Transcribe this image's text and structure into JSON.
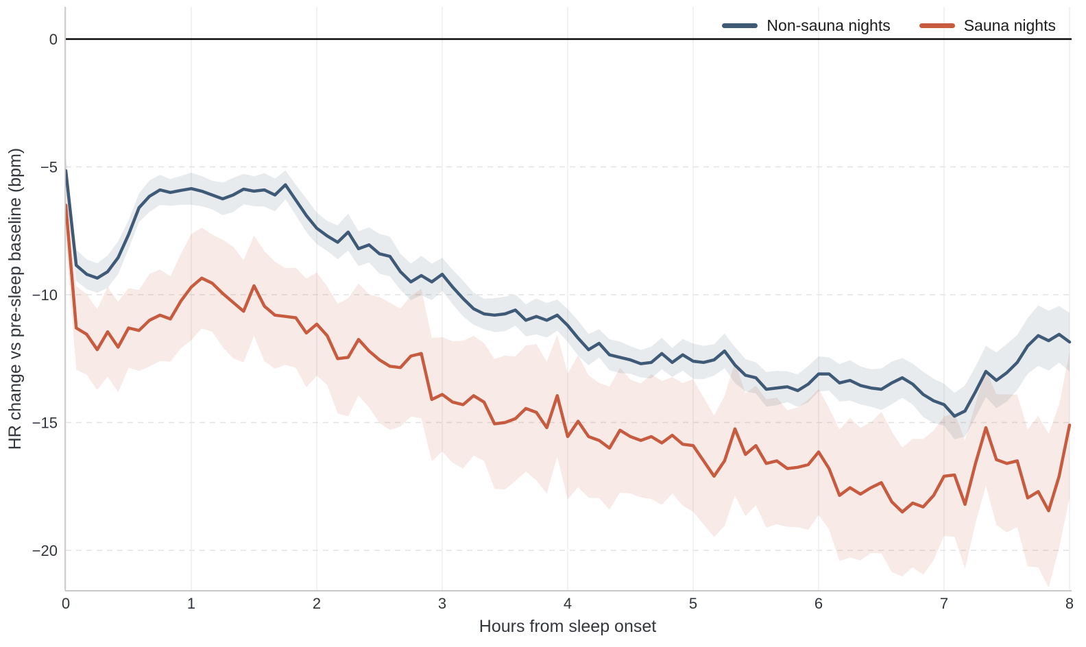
{
  "figure": {
    "background": "#ffffff"
  },
  "legend": {
    "entries": [
      {
        "label": "Non-sauna nights",
        "color": "#3E5A77"
      },
      {
        "label": "Sauna nights",
        "color": "#C65B40"
      }
    ]
  },
  "axes": {
    "tick_label_color": "#2f343c",
    "axis_label_color": "#33373d",
    "spine_color": "#c9c9c9",
    "grid_dashed_color": "#e3e3e3",
    "grid_vertical_color": "#efeded",
    "zero_line_color": "#0a0a0a",
    "x_tick_labels": [
      "0",
      "1",
      "2",
      "3",
      "4",
      "5",
      "6",
      "7",
      "8"
    ],
    "y_tick_labels": [
      "0",
      "−5",
      "−10",
      "−15",
      "−20"
    ]
  },
  "chart_data": {
    "type": "line",
    "title": "",
    "xlabel": "Hours from sleep onset",
    "ylabel": "HR change vs pre-sleep baseline (bpm)",
    "xlim": [
      0,
      8
    ],
    "ylim": [
      -21.6,
      1.3
    ],
    "x_ticks": [
      0,
      1,
      2,
      3,
      4,
      5,
      6,
      7,
      8
    ],
    "y_ticks": [
      0,
      -5,
      -10,
      -15,
      -20
    ],
    "grid": {
      "horizontal": "dashed",
      "vertical": "solid-faint",
      "zero_line": "solid-black"
    },
    "legend_position": "upper right",
    "x_hours": [
      0,
      0.0833,
      0.1667,
      0.25,
      0.3333,
      0.4167,
      0.5,
      0.5833,
      0.6667,
      0.75,
      0.8333,
      0.9167,
      1,
      1.0833,
      1.1667,
      1.25,
      1.3333,
      1.4167,
      1.5,
      1.5833,
      1.6667,
      1.75,
      1.8333,
      1.9167,
      2,
      2.0833,
      2.1667,
      2.25,
      2.3333,
      2.4167,
      2.5,
      2.5833,
      2.6667,
      2.75,
      2.8333,
      2.9167,
      3,
      3.0833,
      3.1667,
      3.25,
      3.3333,
      3.4167,
      3.5,
      3.5833,
      3.6667,
      3.75,
      3.8333,
      3.9167,
      4,
      4.0833,
      4.1667,
      4.25,
      4.3333,
      4.4167,
      4.5,
      4.5833,
      4.6667,
      4.75,
      4.8333,
      4.9167,
      5,
      5.0833,
      5.1667,
      5.25,
      5.3333,
      5.4167,
      5.5,
      5.5833,
      5.6667,
      5.75,
      5.8333,
      5.9167,
      6,
      6.0833,
      6.1667,
      6.25,
      6.3333,
      6.4167,
      6.5,
      6.5833,
      6.6667,
      6.75,
      6.8333,
      6.9167,
      7,
      7.0833,
      7.1667,
      7.25,
      7.3333,
      7.4167,
      7.5,
      7.5833,
      7.6667,
      7.75,
      7.8333,
      7.9167,
      8
    ],
    "series": [
      {
        "name": "Non-sauna nights",
        "color": "#3E5A77",
        "band_alpha": 0.12,
        "band_jitter": 0.08,
        "values": [
          -5.15,
          -8.85,
          -9.2,
          -9.35,
          -9.1,
          -8.55,
          -7.65,
          -6.6,
          -6.15,
          -5.9,
          -6.0,
          -5.92,
          -5.85,
          -5.95,
          -6.1,
          -6.25,
          -6.1,
          -5.87,
          -5.95,
          -5.9,
          -6.1,
          -5.7,
          -6.3,
          -6.9,
          -7.4,
          -7.7,
          -7.95,
          -7.55,
          -8.2,
          -8.05,
          -8.4,
          -8.5,
          -9.1,
          -9.5,
          -9.25,
          -9.5,
          -9.2,
          -9.7,
          -10.15,
          -10.55,
          -10.75,
          -10.8,
          -10.75,
          -10.6,
          -11.0,
          -10.85,
          -11.0,
          -10.8,
          -11.2,
          -11.7,
          -12.15,
          -11.9,
          -12.35,
          -12.45,
          -12.55,
          -12.7,
          -12.65,
          -12.3,
          -12.65,
          -12.35,
          -12.6,
          -12.65,
          -12.55,
          -12.2,
          -12.75,
          -13.15,
          -13.25,
          -13.7,
          -13.65,
          -13.6,
          -13.75,
          -13.5,
          -13.1,
          -13.1,
          -13.45,
          -13.35,
          -13.55,
          -13.65,
          -13.7,
          -13.45,
          -13.25,
          -13.5,
          -13.9,
          -14.15,
          -14.3,
          -14.75,
          -14.55,
          -13.8,
          -13.0,
          -13.35,
          -13.05,
          -12.65,
          -12.0,
          -11.6,
          -11.8,
          -11.55,
          -11.85
        ],
        "ci_halfwidth_profile": [
          [
            0,
            0.5
          ],
          [
            0.25,
            0.6
          ],
          [
            0.5,
            0.62
          ],
          [
            1,
            0.58
          ],
          [
            1.5,
            0.6
          ],
          [
            2,
            0.65
          ],
          [
            2.5,
            0.72
          ],
          [
            3,
            0.7
          ],
          [
            3.5,
            0.65
          ],
          [
            4,
            0.62
          ],
          [
            4.5,
            0.6
          ],
          [
            5,
            0.62
          ],
          [
            5.5,
            0.65
          ],
          [
            6,
            0.7
          ],
          [
            6.5,
            0.75
          ],
          [
            7,
            0.9
          ],
          [
            7.3,
            1.05
          ],
          [
            7.7,
            1.1
          ],
          [
            8,
            1.15
          ]
        ]
      },
      {
        "name": "Sauna nights",
        "color": "#C65B40",
        "band_alpha": 0.13,
        "band_jitter": 0.22,
        "values": [
          -6.5,
          -11.3,
          -11.55,
          -12.15,
          -11.45,
          -12.05,
          -11.3,
          -11.4,
          -11.0,
          -10.8,
          -10.95,
          -10.25,
          -9.7,
          -9.35,
          -9.55,
          -9.95,
          -10.3,
          -10.65,
          -9.65,
          -10.45,
          -10.8,
          -10.85,
          -10.9,
          -11.5,
          -11.15,
          -11.6,
          -12.5,
          -12.45,
          -11.75,
          -12.2,
          -12.55,
          -12.8,
          -12.85,
          -12.4,
          -12.3,
          -14.1,
          -13.9,
          -14.2,
          -14.3,
          -13.95,
          -14.2,
          -15.05,
          -15.0,
          -14.85,
          -14.45,
          -14.6,
          -15.2,
          -13.95,
          -15.55,
          -14.95,
          -15.55,
          -15.7,
          -16.0,
          -15.3,
          -15.55,
          -15.7,
          -15.55,
          -15.8,
          -15.5,
          -15.85,
          -15.9,
          -16.5,
          -17.1,
          -16.5,
          -15.25,
          -16.25,
          -15.9,
          -16.6,
          -16.5,
          -16.8,
          -16.75,
          -16.65,
          -16.15,
          -16.8,
          -17.85,
          -17.55,
          -17.8,
          -17.55,
          -17.35,
          -18.1,
          -18.5,
          -18.15,
          -18.3,
          -17.85,
          -17.1,
          -17.05,
          -18.2,
          -16.6,
          -15.2,
          -16.45,
          -16.6,
          -16.5,
          -17.95,
          -17.7,
          -18.45,
          -17.1,
          -15.1
        ],
        "ci_halfwidth_profile": [
          [
            0,
            1.3
          ],
          [
            0.25,
            1.65
          ],
          [
            0.5,
            1.7
          ],
          [
            1,
            1.95
          ],
          [
            1.5,
            2.0
          ],
          [
            2,
            2.1
          ],
          [
            2.5,
            2.3
          ],
          [
            3,
            2.4
          ],
          [
            3.5,
            2.55
          ],
          [
            4,
            2.4
          ],
          [
            4.5,
            2.4
          ],
          [
            5,
            2.4
          ],
          [
            5.5,
            2.45
          ],
          [
            6,
            2.5
          ],
          [
            6.5,
            2.6
          ],
          [
            7,
            2.55
          ],
          [
            7.3,
            2.4
          ],
          [
            7.7,
            2.7
          ],
          [
            7.85,
            2.9
          ],
          [
            8,
            2.85
          ]
        ]
      }
    ]
  }
}
